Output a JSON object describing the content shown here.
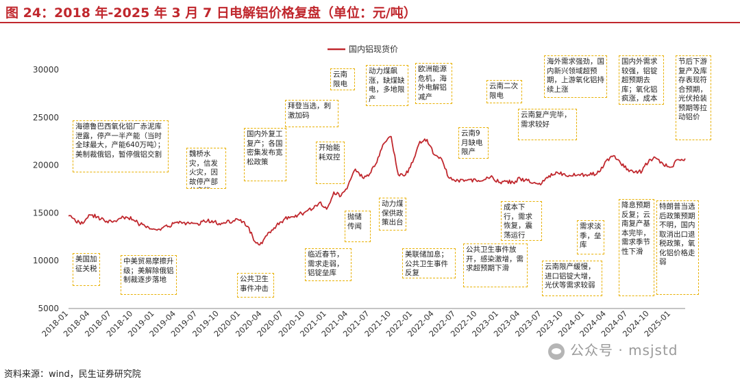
{
  "header": {
    "title": "图 24：2018 年-2025 年 3 月 7 日电解铝价格复盘（单位：元/吨）"
  },
  "footer": {
    "source": "资料来源：wind，民生证券研究院",
    "watermark": "公众号 · msjstd"
  },
  "colors": {
    "series": "#c0272d",
    "annotation_border": "#e8b000",
    "title": "#c0272d"
  },
  "chart_data": {
    "type": "line",
    "title": "",
    "xlabel": "",
    "ylabel": "",
    "ylim": [
      5000,
      30000
    ],
    "yticks": [
      5000,
      10000,
      15000,
      20000,
      25000,
      30000
    ],
    "ytick_labels": [
      "5000",
      "10000",
      "15000",
      "20000",
      "25000",
      "30000"
    ],
    "xlim": [
      "2018-01",
      "2025-03"
    ],
    "xtick_labels": [
      "2018-01",
      "2018-04",
      "2018-07",
      "2018-10",
      "2019-01",
      "2019-04",
      "2019-07",
      "2019-10",
      "2020-01",
      "2020-04",
      "2020-07",
      "2020-10",
      "2021-01",
      "2021-04",
      "2021-07",
      "2021-10",
      "2022-01",
      "2022-04",
      "2022-07",
      "2022-10",
      "2023-01",
      "2023-04",
      "2023-07",
      "2023-10",
      "2024-01",
      "2024-04",
      "2024-07",
      "2024-10",
      "2025-01"
    ],
    "legend_position": "top-center",
    "grid": false,
    "series": [
      {
        "name": "国内铝现货价",
        "x": [
          "2018-01",
          "2018-02",
          "2018-03",
          "2018-04",
          "2018-05",
          "2018-06",
          "2018-07",
          "2018-08",
          "2018-09",
          "2018-10",
          "2018-11",
          "2018-12",
          "2019-01",
          "2019-02",
          "2019-03",
          "2019-04",
          "2019-05",
          "2019-06",
          "2019-07",
          "2019-08",
          "2019-09",
          "2019-10",
          "2019-11",
          "2019-12",
          "2020-01",
          "2020-02",
          "2020-03",
          "2020-04",
          "2020-05",
          "2020-06",
          "2020-07",
          "2020-08",
          "2020-09",
          "2020-10",
          "2020-11",
          "2020-12",
          "2021-01",
          "2021-02",
          "2021-03",
          "2021-04",
          "2021-05",
          "2021-06",
          "2021-07",
          "2021-08",
          "2021-09",
          "2021-10",
          "2021-11",
          "2021-12",
          "2022-01",
          "2022-02",
          "2022-03",
          "2022-04",
          "2022-05",
          "2022-06",
          "2022-07",
          "2022-08",
          "2022-09",
          "2022-10",
          "2022-11",
          "2022-12",
          "2023-01",
          "2023-02",
          "2023-03",
          "2023-04",
          "2023-05",
          "2023-06",
          "2023-07",
          "2023-08",
          "2023-09",
          "2023-10",
          "2023-11",
          "2023-12",
          "2024-01",
          "2024-02",
          "2024-03",
          "2024-04",
          "2024-05",
          "2024-06",
          "2024-07",
          "2024-08",
          "2024-09",
          "2024-10",
          "2024-11",
          "2024-12",
          "2025-01",
          "2025-02",
          "2025-03"
        ],
        "values": [
          14700,
          14100,
          13900,
          14800,
          14600,
          14200,
          14100,
          14400,
          14600,
          14300,
          13800,
          13600,
          13300,
          13400,
          13600,
          14000,
          14000,
          13900,
          13900,
          14100,
          14200,
          13900,
          14000,
          14200,
          14300,
          13600,
          12000,
          11800,
          13000,
          13700,
          14300,
          14600,
          14800,
          15100,
          15400,
          16100,
          15400,
          17200,
          16800,
          17900,
          19600,
          18700,
          19100,
          20300,
          22300,
          23000,
          19000,
          19000,
          20300,
          22500,
          22700,
          21100,
          20700,
          18700,
          18300,
          18500,
          18500,
          18300,
          18500,
          18900,
          18200,
          18300,
          18200,
          18600,
          18400,
          18200,
          18100,
          18900,
          19300,
          19100,
          18900,
          19000,
          19000,
          19000,
          19300,
          20500,
          21000,
          20200,
          19600,
          19300,
          19400,
          20600,
          20700,
          20000,
          19800,
          20600,
          20700
        ]
      }
    ],
    "annotations": [
      {
        "text": "海德鲁巴西氧化铝厂赤泥库泄露，停产一半产能（当时全球最大，产能640万吨）；美制裁俄铝，暂停俄铝交割"
      },
      {
        "text": "美国加征关税"
      },
      {
        "text": "中美贸易摩擦升级；美解除俄铝制裁逐步落地"
      },
      {
        "text": "魏桥水灾，信发火灾，因故停产部分产能"
      },
      {
        "text": "国内外复工复产；各国密集发布宽松政策"
      },
      {
        "text": "公共卫生事件冲击"
      },
      {
        "text": "拜登当选，刺激加码"
      },
      {
        "text": "开始能耗双控"
      },
      {
        "text": "临近春节，需求走弱，铝锭垒库"
      },
      {
        "text": "云南限电"
      },
      {
        "text": "抛储传闻"
      },
      {
        "text": "动力煤飙涨，缺煤缺电，多地限产"
      },
      {
        "text": "动力煤保供政策出台"
      },
      {
        "text": "欧洲能源危机，海外电解铝减产"
      },
      {
        "text": "美联储加息；公共卫生事件反复"
      },
      {
        "text": "云南9月缺电限产"
      },
      {
        "text": "云南二次限电"
      },
      {
        "text": "公共卫生事件放开，感染激增，需求超预期下滑"
      },
      {
        "text": "成本下行，需求恢复，震荡运行"
      },
      {
        "text": "云南复产完毕，需求较好"
      },
      {
        "text": "海外需求强劲，国内新兴领域超预期，上游氧化铝持续上涨"
      },
      {
        "text": "需求淡季，垒库"
      },
      {
        "text": "云南限产缓慢，进口铝锭大增，光伏等需求较弱"
      },
      {
        "text": "国内外需求较强，铝锭超预期去库；氧化铝疯涨，成本推动"
      },
      {
        "text": "降息预期反复；云南复产基本完毕，需求季节性下滑"
      },
      {
        "text": "节后下游复产及库存表现符合预期，光伏抢装预期等拉动铝价"
      },
      {
        "text": "特朗普当选后政策预期不明，国内取消出口退税政策，氧化铝价格走弱"
      }
    ]
  }
}
